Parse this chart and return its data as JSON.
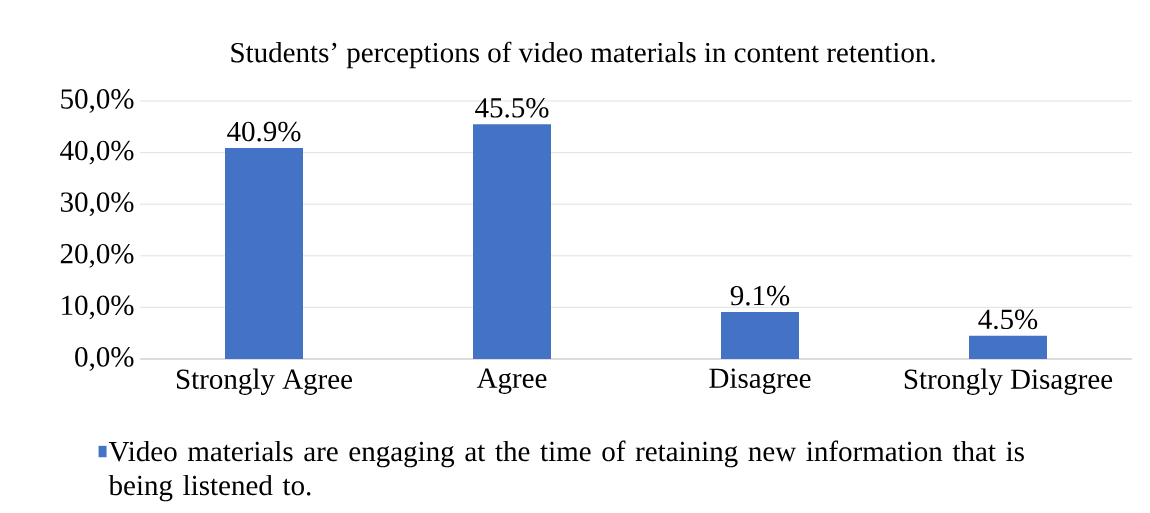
{
  "chart_data": {
    "type": "bar",
    "title": "Students’ perceptions of video materials in content retention.",
    "categories": [
      "Strongly Agree",
      "Agree",
      "Disagree",
      "Strongly Disagree"
    ],
    "series": [
      {
        "name": "Video materials are engaging at the time of retaining new information that is being listened to.",
        "color": "#4472c4",
        "values": [
          40.9,
          45.5,
          9.1,
          4.5
        ],
        "value_labels": [
          "40.9%",
          "45.5%",
          "9.1%",
          "4.5%"
        ]
      }
    ],
    "ylim": [
      0,
      50
    ],
    "yticks": [
      {
        "value": 0,
        "label": "0,0%"
      },
      {
        "value": 10,
        "label": "10,0%"
      },
      {
        "value": 20,
        "label": "20,0%"
      },
      {
        "value": 30,
        "label": "30,0%"
      },
      {
        "value": 40,
        "label": "40,0%"
      },
      {
        "value": 50,
        "label": "50,0%"
      }
    ],
    "grid": "y",
    "legend": "bottom"
  }
}
